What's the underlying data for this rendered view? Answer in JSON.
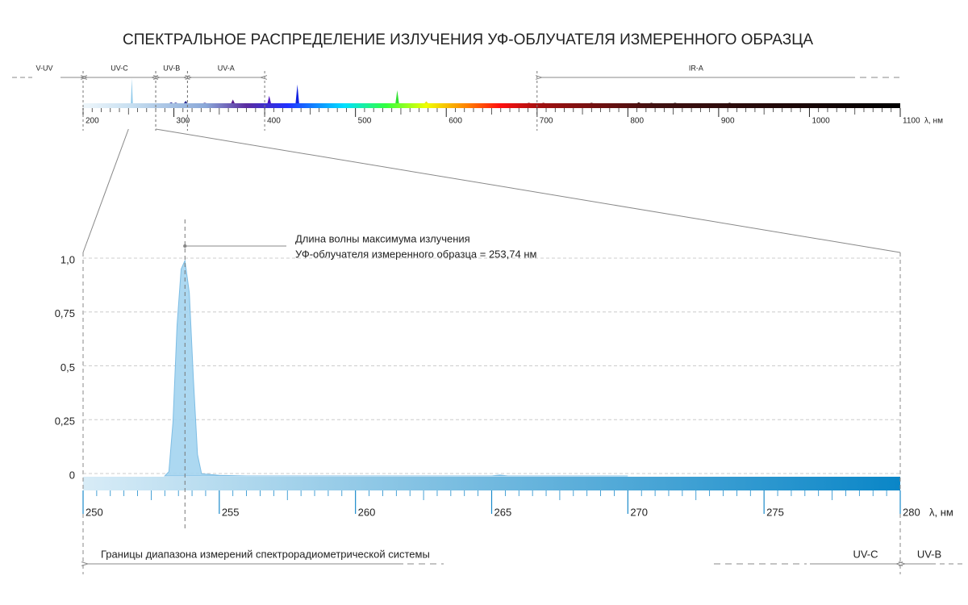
{
  "chart_data": [
    {
      "type": "spectrum",
      "title": "СПЕКТРАЛЬНОЕ РАСПРЕДЕЛЕНИЕ ИЗЛУЧЕНИЯ УФ-ОБЛУЧАТЕЛЯ ИЗМЕРЕННОГО ОБРАЗЦА",
      "x": [
        253.7,
        297,
        302,
        313,
        334,
        365,
        405,
        436,
        546,
        578,
        691,
        707,
        760,
        812,
        826,
        852,
        912
      ],
      "values": [
        1.0,
        0.04,
        0.03,
        0.1,
        0.02,
        0.15,
        0.3,
        0.75,
        0.52,
        0.08,
        0.02,
        0.02,
        0.02,
        0.04,
        0.02,
        0.02,
        0.02
      ],
      "colors": [
        "#8ec9ea",
        "#3a3aa0",
        "#3a3aa0",
        "#2a2a90",
        "#40208a",
        "#5a1a8a",
        "#4a10c0",
        "#1020e0",
        "#30e030",
        "#e8e020",
        "#a01010",
        "#901010",
        "#501010",
        "#301010",
        "#301010",
        "#201010",
        "#201010"
      ],
      "xlim": [
        200,
        1100
      ],
      "xticks": [
        200,
        300,
        400,
        500,
        600,
        700,
        800,
        900,
        1000,
        1100
      ],
      "xlabel": "λ, нм",
      "bands": [
        {
          "name": "V-UV",
          "end": 200
        },
        {
          "name": "UV-C",
          "start": 200,
          "end": 280
        },
        {
          "name": "UV-B",
          "start": 280,
          "end": 315
        },
        {
          "name": "UV-A",
          "start": 315,
          "end": 400
        },
        {
          "name": "IR-A",
          "start": 700
        }
      ]
    },
    {
      "type": "area",
      "x": [
        253.0,
        253.15,
        253.3,
        253.45,
        253.6,
        253.74,
        253.9,
        254.05,
        254.2,
        254.35,
        255.0,
        256.0,
        265.0,
        265.3,
        265.6,
        270.0
      ],
      "values": [
        0,
        0.02,
        0.25,
        0.7,
        0.96,
        1.0,
        0.85,
        0.45,
        0.1,
        0.01,
        0.003,
        0,
        0,
        0.004,
        0,
        0
      ],
      "color": "#a3d4f0",
      "xlim": [
        250,
        280
      ],
      "xticks": [
        250,
        255,
        260,
        265,
        270,
        275,
        280
      ],
      "ylim": [
        0,
        1
      ],
      "yticks": [
        0,
        {
          "value": 0.25,
          "label": "0,25"
        },
        {
          "value": 0.5,
          "label": "0,5"
        },
        {
          "value": 0.75,
          "label": "0,75"
        },
        {
          "value": 1,
          "label": "1,0"
        }
      ],
      "grid": true,
      "xlabel": "λ, нм",
      "peak_x": 253.74,
      "annotation": [
        "Длина волны максимума излучения",
        "УФ-облучателя измеренного образца = 253,74 нм"
      ],
      "range_note": "Границы диапазона измерений спектрорадиометрической системы",
      "band_labels": [
        "UV-C",
        "UV-B"
      ]
    }
  ]
}
